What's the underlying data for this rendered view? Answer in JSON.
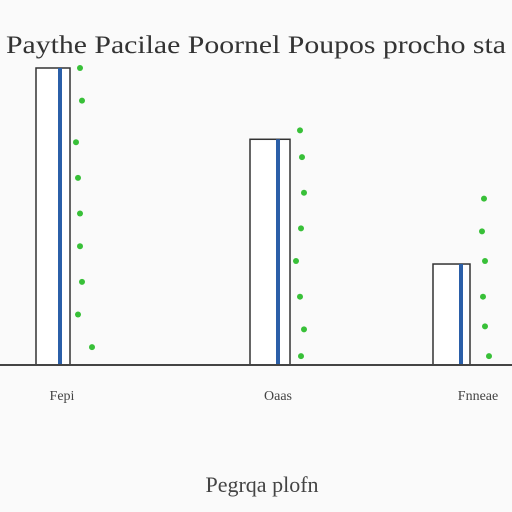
{
  "chart_data": {
    "type": "bar",
    "title": "Paythe Pacilae Poornel Poupos procho sta",
    "xlabel": "Pegrqa plofn",
    "ylabel": "",
    "categories": [
      "Fepi",
      "Oaas",
      "Fnneae"
    ],
    "values": [
      100,
      76,
      34
    ],
    "ylim": [
      0,
      100
    ],
    "dots": [
      [
        100,
        89,
        75,
        63,
        51,
        40,
        28,
        17,
        6
      ],
      [
        79,
        70,
        58,
        46,
        35,
        23,
        12,
        3
      ],
      [
        56,
        45,
        35,
        23,
        13,
        3
      ]
    ],
    "grid": false,
    "legend": "none",
    "colors": {
      "bar_fill": "#ffffff",
      "bar_edge": "#333333",
      "bar_accent": "#2b5fa8",
      "dot": "#38c038",
      "axis": "#444444"
    }
  }
}
